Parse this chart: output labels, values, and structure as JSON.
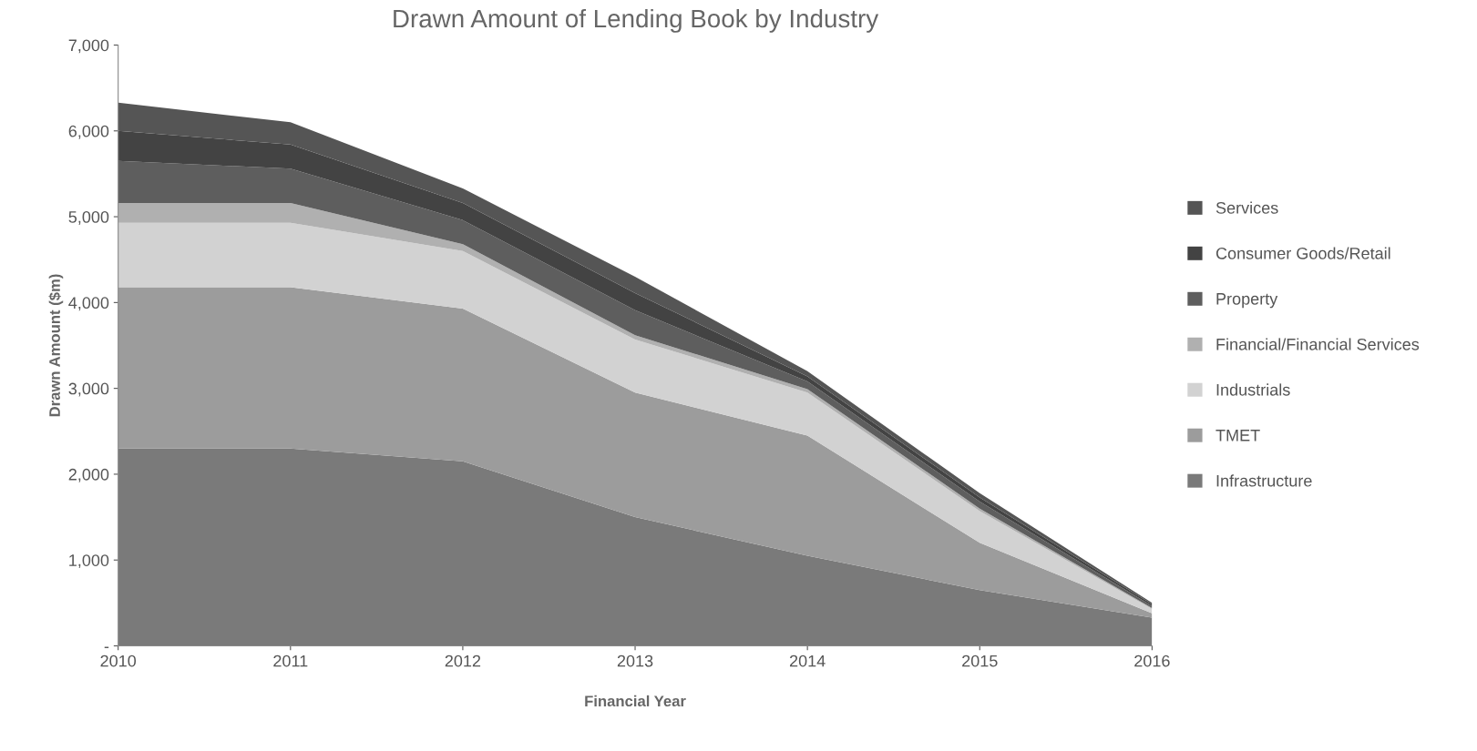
{
  "chart_data": {
    "type": "area",
    "stacked": true,
    "title": "Drawn Amount of Lending Book by Industry",
    "xlabel": "Financial Year",
    "ylabel": "Drawn Amount ($m)",
    "x": [
      2010,
      2011,
      2012,
      2013,
      2014,
      2015,
      2016
    ],
    "series": [
      {
        "name": "Infrastructure",
        "color": "#7a7a7a",
        "values": [
          2300,
          2300,
          2150,
          1500,
          1050,
          650,
          330
        ]
      },
      {
        "name": "TMET",
        "color": "#9c9c9c",
        "values": [
          1880,
          1880,
          1780,
          1450,
          1400,
          550,
          50
        ]
      },
      {
        "name": "Industrials",
        "color": "#d2d2d2",
        "values": [
          750,
          750,
          670,
          620,
          500,
          370,
          50
        ]
      },
      {
        "name": "Financial/Financial Services",
        "color": "#b0b0b0",
        "values": [
          230,
          230,
          80,
          50,
          40,
          30,
          10
        ]
      },
      {
        "name": "Property",
        "color": "#5e5e5e",
        "values": [
          490,
          400,
          280,
          290,
          90,
          80,
          25
        ]
      },
      {
        "name": "Consumer Goods/Retail",
        "color": "#434343",
        "values": [
          350,
          280,
          200,
          200,
          60,
          50,
          20
        ]
      },
      {
        "name": "Services",
        "color": "#555555",
        "values": [
          330,
          260,
          170,
          190,
          60,
          50,
          15
        ]
      }
    ],
    "xlim": [
      2010,
      2016
    ],
    "xticks": [
      2010,
      2011,
      2012,
      2013,
      2014,
      2015,
      2016
    ],
    "ylim": [
      0,
      7000
    ],
    "yticks": [
      {
        "value": 0,
        "label": "-"
      },
      {
        "value": 1000,
        "label": "1,000"
      },
      {
        "value": 2000,
        "label": "2,000"
      },
      {
        "value": 3000,
        "label": "3,000"
      },
      {
        "value": 4000,
        "label": "4,000"
      },
      {
        "value": 5000,
        "label": "5,000"
      },
      {
        "value": 6000,
        "label": "6,000"
      },
      {
        "value": 7000,
        "label": "7,000"
      }
    ],
    "grid": false,
    "legend": "right"
  }
}
